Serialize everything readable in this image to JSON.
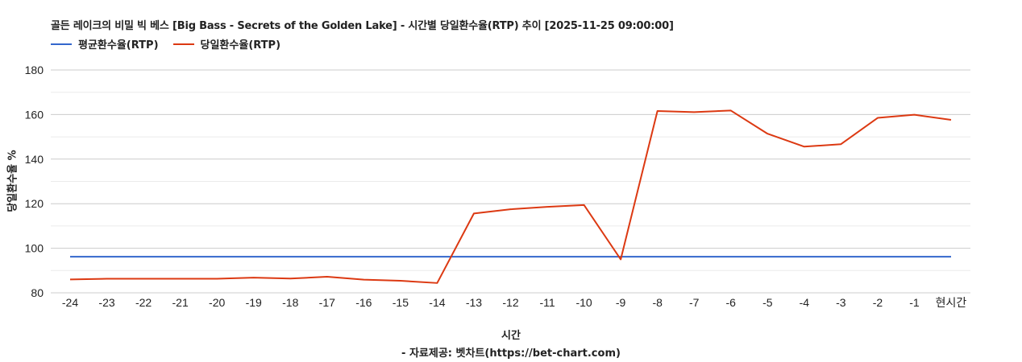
{
  "title": "골든 레이크의 비밀 빅 베스 [Big Bass - Secrets of the Golden Lake] - 시간별 당일환수율(RTP) 추이 [2025-11-25 09:00:00]",
  "legend": [
    {
      "label": "평균환수율(RTP)",
      "color": "#3366cc"
    },
    {
      "label": "당일환수율(RTP)",
      "color": "#dc3912"
    }
  ],
  "axis": {
    "xlabel": "시간",
    "ylabel": "당일환수율 %",
    "source": "- 자료제공: 벳차트(https://bet-chart.com)"
  },
  "chart_data": {
    "type": "line",
    "title": "골든 레이크의 비밀 빅 베스 [Big Bass - Secrets of the Golden Lake] - 시간별 당일환수율(RTP) 추이 [2025-11-25 09:00:00]",
    "xlabel": "시간",
    "ylabel": "당일환수율 %",
    "ylim": [
      80,
      180
    ],
    "yticks": [
      80,
      100,
      120,
      140,
      160,
      180
    ],
    "grid": true,
    "legend_position": "top-left",
    "categories": [
      "-24",
      "-23",
      "-22",
      "-21",
      "-20",
      "-19",
      "-18",
      "-17",
      "-16",
      "-15",
      "-14",
      "-13",
      "-12",
      "-11",
      "-10",
      "-9",
      "-8",
      "-7",
      "-6",
      "-5",
      "-4",
      "-3",
      "-2",
      "-1",
      "현시간"
    ],
    "series": [
      {
        "name": "평균환수율(RTP)",
        "color": "#3366cc",
        "values": [
          96.2,
          96.2,
          96.2,
          96.2,
          96.2,
          96.2,
          96.2,
          96.2,
          96.2,
          96.2,
          96.2,
          96.2,
          96.2,
          96.2,
          96.2,
          96.2,
          96.2,
          96.2,
          96.2,
          96.2,
          96.2,
          96.2,
          96.2,
          96.2,
          96.2
        ]
      },
      {
        "name": "당일환수율(RTP)",
        "color": "#dc3912",
        "values": [
          86.0,
          86.3,
          86.3,
          86.3,
          86.3,
          86.8,
          86.4,
          87.2,
          85.9,
          85.4,
          84.4,
          115.6,
          117.5,
          118.6,
          119.4,
          95.0,
          161.6,
          161.1,
          161.8,
          151.4,
          145.6,
          146.7,
          158.5,
          159.9,
          157.6
        ]
      }
    ]
  }
}
